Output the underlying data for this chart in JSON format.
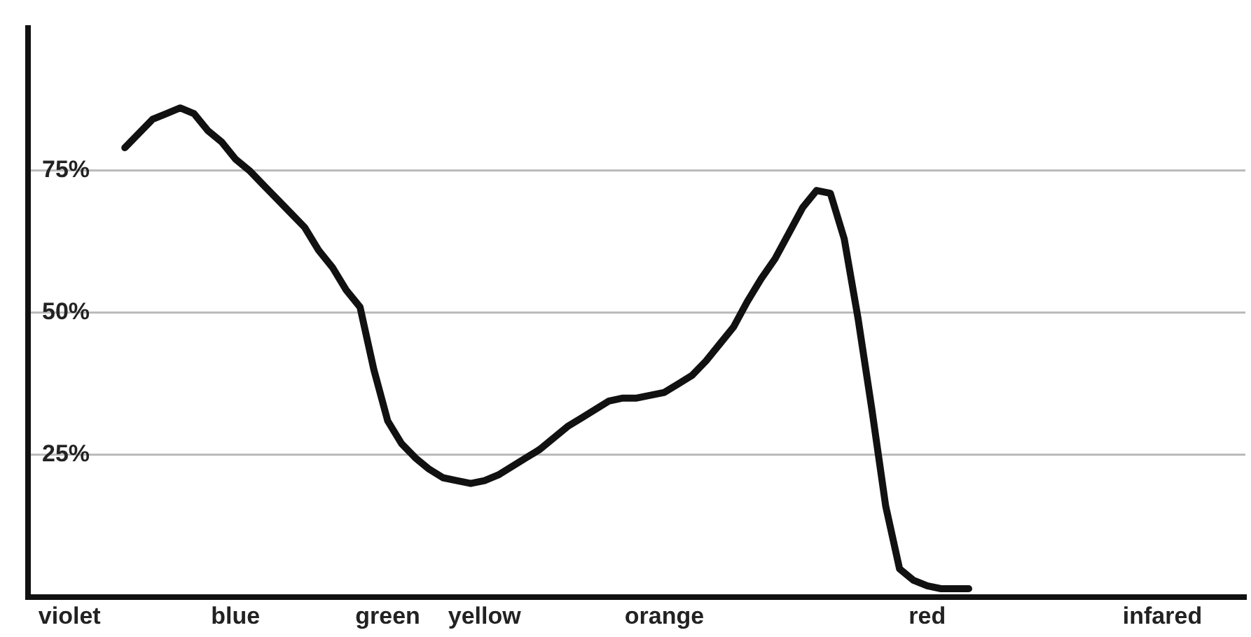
{
  "chart_data": {
    "type": "line",
    "categories": [
      null,
      null,
      null,
      "violet",
      null,
      null,
      null,
      null,
      null,
      null,
      null,
      null,
      null,
      null,
      null,
      "blue",
      null,
      null,
      null,
      null,
      null,
      null,
      null,
      null,
      null,
      null,
      "green",
      null,
      null,
      null,
      null,
      null,
      null,
      "yellow",
      null,
      null,
      null,
      null,
      null,
      null,
      null,
      null,
      null,
      null,
      null,
      null,
      "orange",
      null,
      null,
      null,
      null,
      null,
      null,
      null,
      null,
      null,
      null,
      null,
      null,
      null,
      null,
      null,
      null,
      null,
      null,
      "red",
      null,
      null,
      null,
      null,
      null,
      null,
      null,
      null,
      null,
      null,
      null,
      null,
      null,
      null,
      null,
      null,
      "infared",
      null,
      null,
      null,
      null,
      null,
      null
    ],
    "values": [
      null,
      null,
      null,
      null,
      null,
      null,
      null,
      79,
      81.5,
      84,
      85,
      86,
      85,
      82,
      80,
      77,
      75,
      72.5,
      70,
      67.5,
      65,
      61,
      58,
      54,
      51,
      40,
      31,
      27,
      24.5,
      22.5,
      21,
      20.5,
      20,
      20.5,
      21.5,
      23,
      24.5,
      26,
      28,
      30,
      31.5,
      33,
      34.5,
      35,
      35,
      35.5,
      36,
      37.5,
      39,
      41.5,
      44.5,
      47.5,
      52,
      56,
      59.5,
      64,
      68.5,
      71.5,
      71,
      63,
      49,
      33,
      16,
      5,
      3,
      2,
      1.5,
      1.5,
      1.5,
      null,
      null,
      null,
      null,
      null,
      null,
      null,
      null,
      null,
      null,
      null,
      null,
      null,
      null,
      null,
      null,
      null,
      null,
      null,
      null
    ],
    "color": "#111111",
    "ylim": [
      0,
      100
    ],
    "yticks": [
      {
        "value": 25,
        "label": "25%"
      },
      {
        "value": 50,
        "label": "50%"
      },
      {
        "value": 75,
        "label": "75%"
      }
    ],
    "grid": "y",
    "legend": false,
    "marker": "none",
    "line_style": "solid"
  }
}
